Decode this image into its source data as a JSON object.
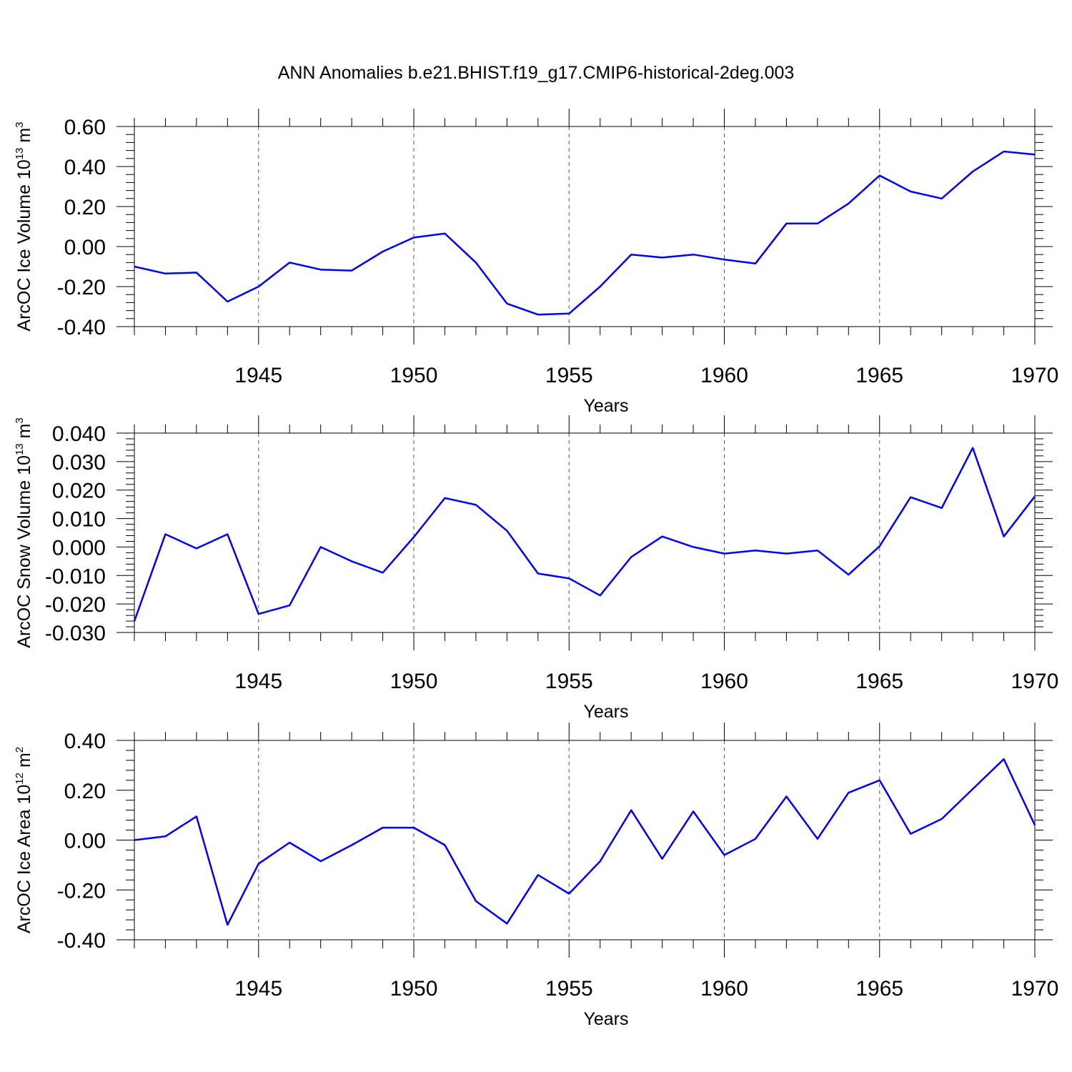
{
  "figure": {
    "title": "ANN Anomalies b.e21.BHIST.f19_g17.CMIP6-historical-2deg.003"
  },
  "chart_data": [
    {
      "type": "line",
      "xlabel": "Years",
      "ylabel": {
        "main": "ArcOC Ice Volume 10",
        "sup1": "13",
        "mid": " m",
        "sup2": "3"
      },
      "xlim": [
        1941,
        1970
      ],
      "ylim": [
        -0.4,
        0.6
      ],
      "xticks": [
        1945,
        1950,
        1955,
        1960,
        1965,
        1970
      ],
      "xtick_labels": [
        "1945",
        "1950",
        "1955",
        "1960",
        "1965",
        "1970"
      ],
      "yticks": [
        -0.4,
        -0.2,
        0.0,
        0.2,
        0.4,
        0.6
      ],
      "ytick_labels": [
        "-0.40",
        "-0.20",
        "0.00",
        "0.20",
        "0.40",
        "0.60"
      ],
      "grid": "vertical dashed at major x ticks",
      "color": "#0000ff",
      "x": [
        1941,
        1942,
        1943,
        1944,
        1945,
        1946,
        1947,
        1948,
        1949,
        1950,
        1951,
        1952,
        1953,
        1954,
        1955,
        1956,
        1957,
        1958,
        1959,
        1960,
        1961,
        1962,
        1963,
        1964,
        1965,
        1966,
        1967,
        1968,
        1969,
        1970
      ],
      "y": [
        -0.1,
        -0.135,
        -0.13,
        -0.275,
        -0.2,
        -0.08,
        -0.115,
        -0.12,
        -0.025,
        0.045,
        0.065,
        -0.08,
        -0.285,
        -0.34,
        -0.335,
        -0.2,
        -0.04,
        -0.055,
        -0.04,
        -0.065,
        -0.085,
        0.115,
        0.115,
        0.215,
        0.355,
        0.275,
        0.24,
        0.375,
        0.475,
        0.46
      ]
    },
    {
      "type": "line",
      "xlabel": "Years",
      "ylabel": {
        "main": "ArcOC Snow Volume 10",
        "sup1": "13",
        "mid": " m",
        "sup2": "3"
      },
      "xlim": [
        1941,
        1970
      ],
      "ylim": [
        -0.03,
        0.04
      ],
      "xticks": [
        1945,
        1950,
        1955,
        1960,
        1965,
        1970
      ],
      "xtick_labels": [
        "1945",
        "1950",
        "1955",
        "1960",
        "1965",
        "1970"
      ],
      "yticks": [
        -0.03,
        -0.02,
        -0.01,
        0.0,
        0.01,
        0.02,
        0.03,
        0.04
      ],
      "ytick_labels": [
        "-0.030",
        "-0.020",
        "-0.010",
        "0.000",
        "0.010",
        "0.020",
        "0.030",
        "0.040"
      ],
      "grid": "vertical dashed at major x ticks",
      "color": "#0000ff",
      "x": [
        1941,
        1942,
        1943,
        1944,
        1945,
        1946,
        1947,
        1948,
        1949,
        1950,
        1951,
        1952,
        1953,
        1954,
        1955,
        1956,
        1957,
        1958,
        1959,
        1960,
        1961,
        1962,
        1963,
        1964,
        1965,
        1966,
        1967,
        1968,
        1969,
        1970
      ],
      "y": [
        -0.026,
        0.0045,
        -0.0005,
        0.0045,
        -0.0235,
        -0.0205,
        0.0,
        -0.005,
        -0.009,
        0.0035,
        0.0172,
        0.0148,
        0.0057,
        -0.0093,
        -0.011,
        -0.017,
        -0.0035,
        0.0037,
        0.0,
        -0.0023,
        -0.0012,
        -0.0023,
        -0.0012,
        -0.0097,
        0.0003,
        0.0175,
        0.0137,
        0.0348,
        0.0037,
        0.0178
      ]
    },
    {
      "type": "line",
      "xlabel": "Years",
      "ylabel": {
        "main": "ArcOC Ice Area 10",
        "sup1": "12",
        "mid": " m",
        "sup2": "2"
      },
      "xlim": [
        1941,
        1970
      ],
      "ylim": [
        -0.4,
        0.4
      ],
      "xticks": [
        1945,
        1950,
        1955,
        1960,
        1965,
        1970
      ],
      "xtick_labels": [
        "1945",
        "1950",
        "1955",
        "1960",
        "1965",
        "1970"
      ],
      "yticks": [
        -0.4,
        -0.2,
        0.0,
        0.2,
        0.4
      ],
      "ytick_labels": [
        "-0.40",
        "-0.20",
        "0.00",
        "0.20",
        "0.40"
      ],
      "grid": "vertical dashed at major x ticks",
      "color": "#0000ff",
      "x": [
        1941,
        1942,
        1943,
        1944,
        1945,
        1946,
        1947,
        1948,
        1949,
        1950,
        1951,
        1952,
        1953,
        1954,
        1955,
        1956,
        1957,
        1958,
        1959,
        1960,
        1961,
        1962,
        1963,
        1964,
        1965,
        1966,
        1967,
        1968,
        1969,
        1970
      ],
      "y": [
        0.0,
        0.015,
        0.095,
        -0.34,
        -0.095,
        -0.01,
        -0.085,
        -0.02,
        0.05,
        0.05,
        -0.02,
        -0.245,
        -0.335,
        -0.14,
        -0.215,
        -0.085,
        0.12,
        -0.075,
        0.115,
        -0.06,
        0.005,
        0.175,
        0.005,
        0.19,
        0.24,
        0.025,
        0.085,
        0.205,
        0.325,
        0.06
      ]
    }
  ]
}
